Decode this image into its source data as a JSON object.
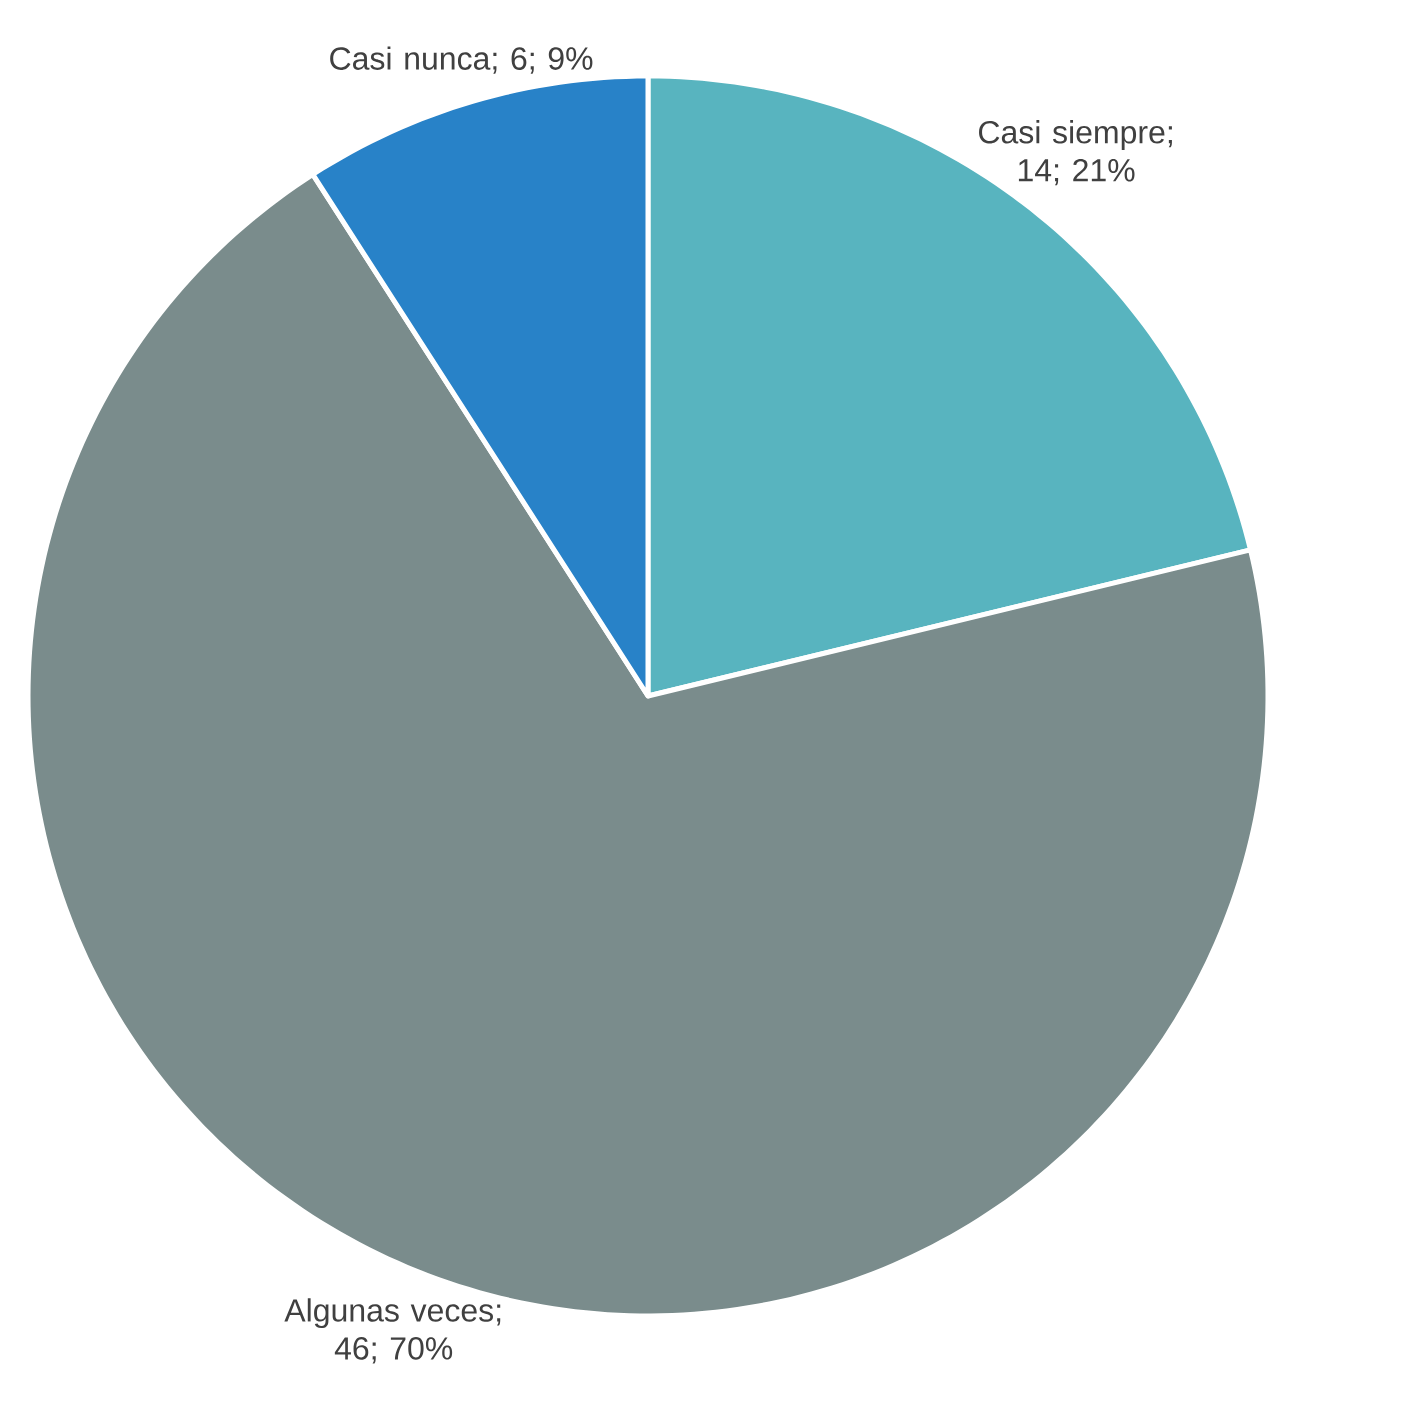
{
  "chart_data": {
    "type": "pie",
    "categories": [
      "Casi siempre",
      "Algunas veces",
      "Casi nunca"
    ],
    "values": [
      14,
      46,
      6
    ],
    "value_labels": [
      "; 14; 21%",
      "; 46; 70%",
      "; 6; 9%"
    ],
    "colors": [
      "#58b4bf",
      "#7a8c8c",
      "#2882c8"
    ]
  }
}
